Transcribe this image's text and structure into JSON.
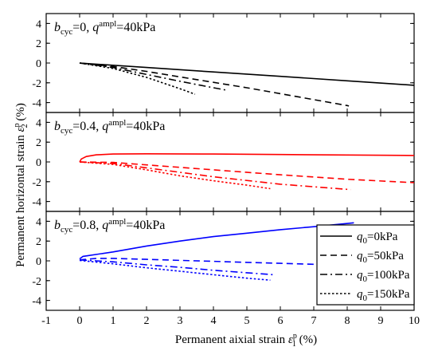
{
  "chart_data": {
    "type": "line",
    "xlabel": "Permanent aixial strain ε1p (%)",
    "ylabel": "Permanent horizontal strain ε2p (%)",
    "xlim": [
      -1,
      10
    ],
    "x_ticks": [
      "-1",
      "0",
      "1",
      "2",
      "3",
      "4",
      "5",
      "6",
      "7",
      "8",
      "9",
      "10"
    ],
    "y_ticks": [
      "4",
      "2",
      "0",
      "-2",
      "-4"
    ],
    "legend": {
      "placement": "bottom-right of lower panel",
      "entries": [
        "q0=0kPa",
        "q0=50kPa",
        "q0=100kPa",
        "q0=150kPa"
      ],
      "styles": [
        "solid",
        "dash",
        "dashdot",
        "dot"
      ]
    },
    "panels": [
      {
        "title": "bcyc=0, qampl=40kPa",
        "color": "#000000",
        "ylim": [
          -5,
          5
        ],
        "series": [
          {
            "name": "q0=0kPa",
            "style": "solid",
            "points": [
              [
                0,
                0
              ],
              [
                2,
                -0.45
              ],
              [
                4,
                -0.9
              ],
              [
                6,
                -1.35
              ],
              [
                8,
                -1.8
              ],
              [
                10,
                -2.25
              ]
            ]
          },
          {
            "name": "q0=50kPa",
            "style": "dash",
            "points": [
              [
                0,
                0
              ],
              [
                1,
                -0.35
              ],
              [
                2,
                -0.85
              ],
              [
                3,
                -1.4
              ],
              [
                4,
                -1.95
              ],
              [
                5,
                -2.5
              ],
              [
                6,
                -3.1
              ],
              [
                7,
                -3.7
              ],
              [
                8,
                -4.3
              ],
              [
                8.05,
                -4.35
              ]
            ]
          },
          {
            "name": "q0=100kPa",
            "style": "dashdot",
            "points": [
              [
                0,
                0
              ],
              [
                1,
                -0.45
              ],
              [
                2,
                -1.15
              ],
              [
                3,
                -1.85
              ],
              [
                4,
                -2.5
              ],
              [
                4.4,
                -2.75
              ]
            ]
          },
          {
            "name": "q0=150kPa",
            "style": "dot",
            "points": [
              [
                0,
                0
              ],
              [
                1,
                -0.55
              ],
              [
                2,
                -1.45
              ],
              [
                3,
                -2.6
              ],
              [
                3.45,
                -3.15
              ]
            ]
          }
        ]
      },
      {
        "title": "bcyc=0.4, qampl=40kPa",
        "color": "#ff0000",
        "ylim": [
          -5,
          5
        ],
        "series": [
          {
            "name": "q0=0kPa",
            "style": "solid",
            "points": [
              [
                0,
                0
              ],
              [
                0.05,
                0.3
              ],
              [
                0.2,
                0.55
              ],
              [
                0.5,
                0.72
              ],
              [
                1,
                0.8
              ],
              [
                2,
                0.82
              ],
              [
                4,
                0.8
              ],
              [
                6,
                0.75
              ],
              [
                8,
                0.7
              ],
              [
                10,
                0.65
              ]
            ]
          },
          {
            "name": "q0=50kPa",
            "style": "dash",
            "points": [
              [
                0,
                0
              ],
              [
                1,
                -0.05
              ],
              [
                2,
                -0.3
              ],
              [
                4,
                -0.8
              ],
              [
                6,
                -1.3
              ],
              [
                8,
                -1.75
              ],
              [
                10,
                -2.1
              ]
            ]
          },
          {
            "name": "q0=100kPa",
            "style": "dashdot",
            "points": [
              [
                0,
                0
              ],
              [
                1,
                -0.15
              ],
              [
                2,
                -0.6
              ],
              [
                4,
                -1.5
              ],
              [
                6,
                -2.25
              ],
              [
                8.1,
                -2.8
              ]
            ]
          },
          {
            "name": "q0=150kPa",
            "style": "dot",
            "points": [
              [
                0,
                0
              ],
              [
                1,
                -0.25
              ],
              [
                2,
                -0.8
              ],
              [
                3,
                -1.4
              ],
              [
                4,
                -1.9
              ],
              [
                5,
                -2.35
              ],
              [
                5.7,
                -2.7
              ]
            ]
          }
        ]
      },
      {
        "title": "bcyc=0.8, qampl=40kPa",
        "color": "#0000ff",
        "ylim": [
          -5,
          5
        ],
        "series": [
          {
            "name": "q0=0kPa",
            "style": "solid",
            "points": [
              [
                0,
                0.2
              ],
              [
                0.1,
                0.45
              ],
              [
                1,
                0.9
              ],
              [
                2,
                1.5
              ],
              [
                3,
                2.0
              ],
              [
                4,
                2.45
              ],
              [
                5,
                2.8
              ],
              [
                6,
                3.15
              ],
              [
                7,
                3.45
              ],
              [
                8.2,
                3.85
              ]
            ]
          },
          {
            "name": "q0=50kPa",
            "style": "dash",
            "points": [
              [
                0,
                0.1
              ],
              [
                0.5,
                0.25
              ],
              [
                1,
                0.25
              ],
              [
                2,
                0.15
              ],
              [
                3,
                0.05
              ],
              [
                4,
                -0.05
              ],
              [
                5,
                -0.15
              ],
              [
                6,
                -0.25
              ],
              [
                7,
                -0.35
              ]
            ]
          },
          {
            "name": "q0=100kPa",
            "style": "dashdot",
            "points": [
              [
                0,
                0.1
              ],
              [
                1,
                -0.1
              ],
              [
                2,
                -0.4
              ],
              [
                3,
                -0.65
              ],
              [
                4,
                -0.95
              ],
              [
                5,
                -1.2
              ],
              [
                5.8,
                -1.4
              ]
            ]
          },
          {
            "name": "q0=150kPa",
            "style": "dot",
            "points": [
              [
                0,
                0.05
              ],
              [
                1,
                -0.3
              ],
              [
                2,
                -0.7
              ],
              [
                3,
                -1.05
              ],
              [
                4,
                -1.4
              ],
              [
                5,
                -1.75
              ],
              [
                5.7,
                -1.95
              ]
            ]
          }
        ]
      }
    ]
  }
}
